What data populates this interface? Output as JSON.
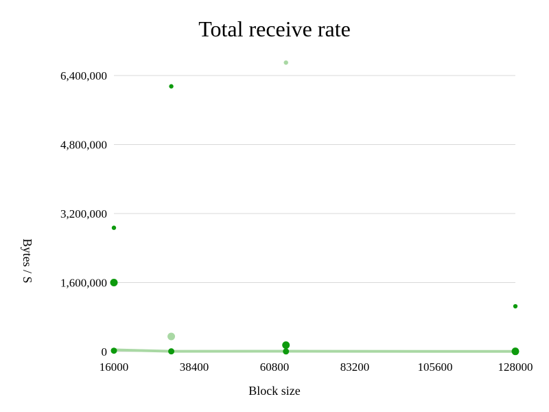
{
  "chart_data": {
    "type": "scatter",
    "title": "Total receive rate",
    "xlabel": "Block size",
    "ylabel": "Bytes / S",
    "xlim": [
      16000,
      128000
    ],
    "ylim": [
      0,
      6400000
    ],
    "x_ticks": [
      16000,
      38400,
      60800,
      83200,
      105600,
      128000
    ],
    "x_tick_labels": [
      "16000",
      "38400",
      "60800",
      "83200",
      "105600",
      "128000"
    ],
    "y_ticks": [
      0,
      1600000,
      3200000,
      4800000,
      6400000
    ],
    "y_tick_labels": [
      "0",
      "1,600,000",
      "3,200,000",
      "4,800,000",
      "6,400,000"
    ],
    "grid": true,
    "legend": "none",
    "colors": {
      "dark": "#0d9a0d",
      "light": "#a9d8a4",
      "grid": "#d9d9d9"
    },
    "series": [
      {
        "color": "dark",
        "marker_size": "small",
        "points": [
          {
            "x": 16000,
            "y": 2870000
          },
          {
            "x": 32000,
            "y": 6150000
          },
          {
            "x": 128000,
            "y": 1050000
          }
        ]
      },
      {
        "color": "light",
        "marker_size": "small",
        "points": [
          {
            "x": 64000,
            "y": 6700000
          }
        ]
      },
      {
        "color": "dark",
        "marker_size": "large",
        "points": [
          {
            "x": 16000,
            "y": 1600000
          },
          {
            "x": 64000,
            "y": 150000
          },
          {
            "x": 128000,
            "y": 5000
          }
        ]
      },
      {
        "color": "light",
        "marker_size": "large",
        "points": [
          {
            "x": 32000,
            "y": 350000
          }
        ]
      },
      {
        "color": "light",
        "line": true,
        "points": [
          {
            "x": 16000,
            "y": 40000
          },
          {
            "x": 32000,
            "y": 5000
          },
          {
            "x": 64000,
            "y": 8000
          },
          {
            "x": 128000,
            "y": 3000
          }
        ]
      },
      {
        "color": "dark",
        "marker_size": "medium",
        "points": [
          {
            "x": 16000,
            "y": 20000
          },
          {
            "x": 32000,
            "y": 5000
          },
          {
            "x": 64000,
            "y": 3000
          },
          {
            "x": 128000,
            "y": 2000
          }
        ]
      }
    ]
  }
}
